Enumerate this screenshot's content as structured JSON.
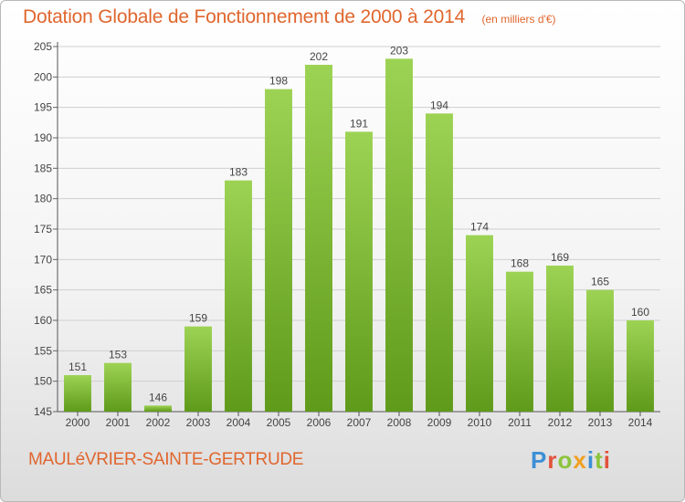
{
  "header": {
    "title": "Dotation Globale de Fonctionnement de 2000 à 2014",
    "subtitle": "(en milliers d'€)"
  },
  "footer": {
    "commune": "MAULéVRIER-SAINTE-GERTRUDE",
    "logo_text": "Proxiti"
  },
  "colors": {
    "title": "#e0662e",
    "bar_top": "#9dd354",
    "bar_bottom": "#5f9a1a",
    "grid": "#cfcfcf"
  },
  "chart_data": {
    "type": "bar",
    "title": "Dotation Globale de Fonctionnement de 2000 à 2014",
    "subtitle": "(en milliers d'€)",
    "xlabel": "",
    "ylabel": "",
    "categories": [
      "2000",
      "2001",
      "2002",
      "2003",
      "2004",
      "2005",
      "2006",
      "2007",
      "2008",
      "2009",
      "2010",
      "2011",
      "2012",
      "2013",
      "2014"
    ],
    "values": [
      151,
      153,
      146,
      159,
      183,
      198,
      202,
      191,
      203,
      194,
      174,
      168,
      169,
      165,
      160
    ],
    "ylim": [
      145,
      205
    ],
    "yticks": [
      145,
      150,
      155,
      160,
      165,
      170,
      175,
      180,
      185,
      190,
      195,
      200,
      205
    ],
    "grid": true,
    "legend": "none"
  }
}
